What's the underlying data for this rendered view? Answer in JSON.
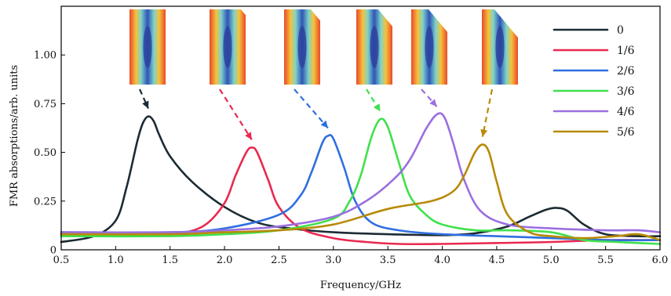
{
  "chart_data": {
    "type": "line",
    "xlabel": "Frequency/GHz",
    "ylabel": "FMR absorptions/arb. units",
    "xlim": [
      0.5,
      6.0
    ],
    "ylim": [
      0,
      1.25
    ],
    "xticks": [
      0.5,
      1.0,
      1.5,
      2.0,
      2.5,
      3.0,
      3.5,
      4.0,
      4.5,
      5.0,
      5.5,
      6.0
    ],
    "xtick_labels": [
      "0.5",
      "1.0",
      "1.5",
      "2.0",
      "2.5",
      "3.0",
      "3.5",
      "4.0",
      "4.5",
      "5.0",
      "5.5",
      "6.0"
    ],
    "yticks": [
      0,
      0.25,
      0.5,
      0.75,
      1.0
    ],
    "ytick_labels": [
      "0",
      "0.25",
      "0.50",
      "0.75",
      "1.00"
    ],
    "grid": false,
    "legend_position": "top-right",
    "series": [
      {
        "name": "0",
        "color": "#1c2b33",
        "x": [
          0.5,
          0.8,
          1.0,
          1.1,
          1.2,
          1.25,
          1.3,
          1.35,
          1.4,
          1.5,
          1.7,
          2.0,
          2.3,
          2.6,
          3.0,
          3.5,
          4.0,
          4.3,
          4.6,
          4.8,
          4.95,
          5.05,
          5.15,
          5.3,
          5.5,
          5.8,
          6.0
        ],
        "y": [
          0.04,
          0.07,
          0.15,
          0.32,
          0.56,
          0.65,
          0.685,
          0.66,
          0.59,
          0.48,
          0.35,
          0.22,
          0.14,
          0.11,
          0.09,
          0.08,
          0.075,
          0.085,
          0.12,
          0.17,
          0.205,
          0.215,
          0.2,
          0.13,
          0.08,
          0.07,
          0.07
        ]
      },
      {
        "name": "1/6",
        "color": "#e8294f",
        "x": [
          0.5,
          1.0,
          1.5,
          1.8,
          2.0,
          2.1,
          2.2,
          2.25,
          2.3,
          2.4,
          2.5,
          2.7,
          3.0,
          3.3,
          3.6,
          4.0,
          4.5,
          5.0,
          5.5,
          6.0
        ],
        "y": [
          0.08,
          0.075,
          0.08,
          0.12,
          0.24,
          0.38,
          0.5,
          0.525,
          0.5,
          0.36,
          0.22,
          0.11,
          0.06,
          0.04,
          0.03,
          0.03,
          0.035,
          0.04,
          0.05,
          0.05
        ]
      },
      {
        "name": "2/6",
        "color": "#2f6fe0",
        "x": [
          0.5,
          1.5,
          2.0,
          2.5,
          2.7,
          2.8,
          2.9,
          2.95,
          3.0,
          3.1,
          3.2,
          3.35,
          3.6,
          4.0,
          4.5,
          5.0,
          5.5,
          6.0
        ],
        "y": [
          0.09,
          0.09,
          0.11,
          0.18,
          0.28,
          0.4,
          0.55,
          0.585,
          0.57,
          0.42,
          0.25,
          0.14,
          0.1,
          0.08,
          0.07,
          0.06,
          0.05,
          0.05
        ]
      },
      {
        "name": "3/6",
        "color": "#3fe04c",
        "x": [
          0.5,
          1.5,
          2.0,
          2.5,
          3.0,
          3.15,
          3.25,
          3.35,
          3.43,
          3.5,
          3.6,
          3.7,
          3.85,
          4.0,
          4.3,
          4.6,
          5.0,
          5.3,
          5.6,
          6.0
        ],
        "y": [
          0.07,
          0.07,
          0.08,
          0.1,
          0.16,
          0.25,
          0.38,
          0.58,
          0.67,
          0.63,
          0.45,
          0.28,
          0.18,
          0.13,
          0.1,
          0.1,
          0.09,
          0.05,
          0.04,
          0.03
        ]
      },
      {
        "name": "4/6",
        "color": "#9b6fe0",
        "x": [
          0.5,
          1.5,
          2.0,
          2.5,
          3.0,
          3.3,
          3.55,
          3.7,
          3.85,
          3.95,
          4.02,
          4.1,
          4.2,
          4.35,
          4.6,
          5.0,
          5.5,
          5.8,
          6.0
        ],
        "y": [
          0.09,
          0.09,
          0.1,
          0.12,
          0.17,
          0.25,
          0.36,
          0.46,
          0.62,
          0.695,
          0.68,
          0.55,
          0.36,
          0.2,
          0.13,
          0.11,
          0.1,
          0.1,
          0.09
        ]
      },
      {
        "name": "5/6",
        "color": "#b88a0a",
        "x": [
          0.5,
          1.5,
          2.0,
          2.5,
          3.0,
          3.5,
          3.9,
          4.1,
          4.2,
          4.3,
          4.37,
          4.43,
          4.5,
          4.6,
          4.8,
          5.0,
          5.3,
          5.6,
          5.8,
          6.0
        ],
        "y": [
          0.08,
          0.08,
          0.09,
          0.1,
          0.13,
          0.21,
          0.25,
          0.3,
          0.38,
          0.5,
          0.54,
          0.5,
          0.35,
          0.18,
          0.09,
          0.07,
          0.06,
          0.07,
          0.08,
          0.05
        ]
      }
    ]
  }
}
